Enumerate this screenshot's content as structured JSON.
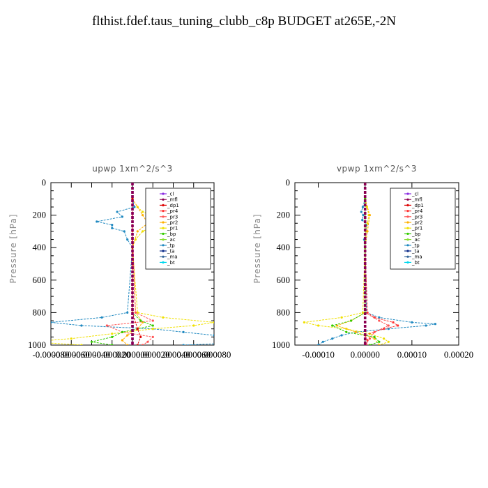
{
  "title": "flthist.fdef.taus_tuning_clubb_c8p  BUDGET at265E,-2N",
  "legend": [
    "_cl",
    "_mfl",
    "_dp1",
    "_pr4",
    "_pr3",
    "_pr2",
    "_pr1",
    "_bp",
    "_ac",
    "_tp",
    "_ta",
    "_ma",
    "_bt"
  ],
  "colors": {
    "_cl": "#8a2be2",
    "_mfl": "#8b0050",
    "_dp1": "#dd0000",
    "_pr4": "#ff3333",
    "_pr3": "#ff5555",
    "_pr2": "#ffb000",
    "_pr1": "#f0e000",
    "_bp": "#33cc00",
    "_ac": "#88dd33",
    "_tp": "#1e88c0",
    "_ta": "#0a2a88",
    "_ma": "#336699",
    "_bt": "#00d8ee"
  },
  "chart_data": [
    {
      "type": "line",
      "title": "upwp   1xm^2/s^3",
      "ylabel": "Pressure [hPa]",
      "ylim": [
        1000,
        0
      ],
      "xlim": [
        -8e-05,
        8e-05
      ],
      "yticks": [
        0,
        200,
        400,
        600,
        800,
        1000
      ],
      "xtick_labels": [
        "-0.000080",
        "-0.000060",
        "-0.000040",
        "-0.000020",
        "0.000000",
        "0.000020",
        "0.000040",
        "0.000060",
        "0.000080"
      ],
      "xtick_values": [
        -8e-05,
        -6e-05,
        -4e-05,
        -2e-05,
        0,
        2e-05,
        4e-05,
        6e-05,
        8e-05
      ],
      "legend_position": "top-right",
      "series": [
        {
          "name": "_tp",
          "p": [
            100,
            150,
            180,
            210,
            240,
            260,
            280,
            300,
            350,
            400,
            800,
            830,
            860,
            880,
            900,
            920,
            940,
            960,
            980,
            1000
          ],
          "x": [
            0,
            2e-06,
            -1.5e-05,
            -1e-05,
            -3.5e-05,
            -2e-05,
            -2e-05,
            -8e-06,
            -5e-06,
            0,
            -5e-06,
            -3e-05,
            -8e-05,
            -5e-05,
            2e-05,
            5e-05,
            8e-05,
            0.00011,
            0.00013,
            5e-05
          ]
        },
        {
          "name": "_pr1",
          "p": [
            100,
            150,
            180,
            200,
            230,
            250,
            270,
            300,
            350,
            400,
            800,
            830,
            860,
            880,
            900,
            930,
            960,
            980,
            1000
          ],
          "x": [
            0,
            5e-06,
            1e-05,
            2e-05,
            3e-05,
            4e-05,
            2e-05,
            1e-05,
            3e-06,
            0,
            5e-06,
            3e-05,
            8e-05,
            6e-05,
            2e-05,
            -2e-05,
            -6e-05,
            -0.0001,
            -5e-05
          ]
        },
        {
          "name": "_pr2",
          "p": [
            100,
            200,
            250,
            300,
            400,
            800,
            860,
            900,
            940,
            970,
            1000
          ],
          "x": [
            0,
            1e-05,
            1.5e-05,
            5e-06,
            0,
            3e-06,
            1e-05,
            5e-06,
            -5e-06,
            -1e-05,
            -5e-06
          ]
        },
        {
          "name": "_pr3",
          "p": [
            100,
            300,
            800,
            850,
            880,
            920,
            950,
            980,
            1000
          ],
          "x": [
            0,
            0,
            3e-06,
            2e-05,
            -2.5e-05,
            -1e-05,
            2e-05,
            1.5e-05,
            1e-05
          ]
        },
        {
          "name": "_bp",
          "p": [
            100,
            400,
            800,
            850,
            880,
            920,
            950,
            980,
            1000
          ],
          "x": [
            0,
            0,
            0,
            8e-06,
            2e-05,
            -1e-05,
            -2e-05,
            -4e-05,
            -2e-05
          ]
        },
        {
          "name": "_dp1",
          "p": [
            100,
            400,
            800,
            900,
            950,
            1000
          ],
          "x": [
            0,
            0,
            0,
            5e-06,
            8e-06,
            5e-06
          ]
        },
        {
          "name": "_cl",
          "p": [
            0,
            1000
          ],
          "x": [
            0,
            0
          ]
        },
        {
          "name": "_mfl",
          "p": [
            0,
            1000
          ],
          "x": [
            0,
            0
          ]
        }
      ]
    },
    {
      "type": "line",
      "title": "vpwp   1xm^2/s^3",
      "ylabel": "Pressure [hPa]",
      "ylim": [
        1000,
        0
      ],
      "xlim": [
        -0.00015,
        0.0002
      ],
      "yticks": [
        0,
        200,
        400,
        600,
        800,
        1000
      ],
      "xtick_labels": [
        "-0.00010",
        "0.00000",
        "0.00010",
        "0.00020"
      ],
      "xtick_values": [
        -0.0001,
        0,
        0.0001,
        0.0002
      ],
      "legend_position": "top-right",
      "series": [
        {
          "name": "_tp",
          "p": [
            100,
            150,
            180,
            200,
            230,
            260,
            300,
            350,
            400,
            800,
            830,
            860,
            870,
            880,
            900,
            920,
            940,
            960,
            980,
            1000
          ],
          "x": [
            0,
            -5e-06,
            -8e-06,
            -4e-06,
            -6e-06,
            3e-06,
            2e-06,
            -2e-06,
            0,
            3e-06,
            3e-05,
            0.0001,
            0.00015,
            0.00013,
            5e-05,
            -2e-05,
            -5e-05,
            -7e-05,
            -9e-05,
            -0.0001
          ]
        },
        {
          "name": "_pr1",
          "p": [
            100,
            150,
            200,
            250,
            300,
            400,
            800,
            830,
            860,
            880,
            900,
            930,
            960,
            980,
            1000
          ],
          "x": [
            0,
            4e-06,
            8e-06,
            5e-06,
            2e-06,
            0,
            -5e-06,
            -5e-05,
            -0.00013,
            -0.0001,
            -4e-05,
            1e-05,
            4e-05,
            5e-05,
            3e-05
          ]
        },
        {
          "name": "_pr2",
          "p": [
            100,
            200,
            300,
            400,
            800,
            850,
            880,
            920,
            960,
            1000
          ],
          "x": [
            0,
            1e-05,
            5e-06,
            0,
            0,
            -3e-05,
            -6e-05,
            -2e-05,
            2e-05,
            3e-05
          ]
        },
        {
          "name": "_pr4",
          "p": [
            100,
            400,
            800,
            830,
            860,
            880,
            900,
            940,
            970,
            1000
          ],
          "x": [
            0,
            0,
            5e-06,
            2e-05,
            6e-05,
            7e-05,
            4e-05,
            0,
            5e-06,
            3e-06
          ]
        },
        {
          "name": "_pr3",
          "p": [
            100,
            400,
            800,
            850,
            880,
            920,
            960,
            1000
          ],
          "x": [
            0,
            0,
            0,
            3e-05,
            5e-05,
            2e-05,
            1e-05,
            0
          ]
        },
        {
          "name": "_bp",
          "p": [
            100,
            400,
            800,
            850,
            880,
            920,
            950,
            980,
            1000
          ],
          "x": [
            0,
            0,
            0,
            -3e-05,
            -7e-05,
            -4e-05,
            2e-05,
            3e-05,
            1e-05
          ]
        },
        {
          "name": "_cl",
          "p": [
            0,
            1000
          ],
          "x": [
            0,
            0
          ]
        },
        {
          "name": "_mfl",
          "p": [
            0,
            1000
          ],
          "x": [
            0,
            0
          ]
        }
      ]
    }
  ]
}
